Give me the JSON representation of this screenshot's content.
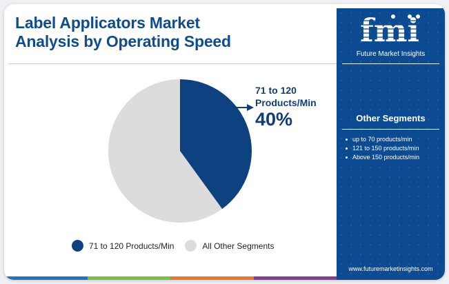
{
  "title": "Label Applicators Market\nAnalysis by Operating Speed",
  "chart_data": {
    "type": "pie",
    "title": "Label Applicators Market Analysis by Operating Speed",
    "slices": [
      {
        "label": "71 to 120 Products/Min",
        "value": 40,
        "color": "#0e4180"
      },
      {
        "label": "All Other Segments",
        "value": 60,
        "color": "#dcdcdc"
      }
    ],
    "callout": {
      "label": "71 to 120\nProducts/Min",
      "value": "40%"
    },
    "legend": {
      "position": "bottom"
    }
  },
  "sidebar": {
    "logo_text": "fmi",
    "logo_tagline": "Future Market Insights",
    "heading": "Other Segments",
    "items": [
      "up to 70 products/min",
      "121 to 150 products/min",
      "Above 150 products/min"
    ],
    "website": "www.futuremarketinsights.com"
  },
  "colors": {
    "primary": "#0c4b91",
    "title": "#0f4c8a",
    "accent_bar": [
      "#1b76bb",
      "#7bbf43",
      "#e7772d",
      "#8a3c94"
    ]
  }
}
